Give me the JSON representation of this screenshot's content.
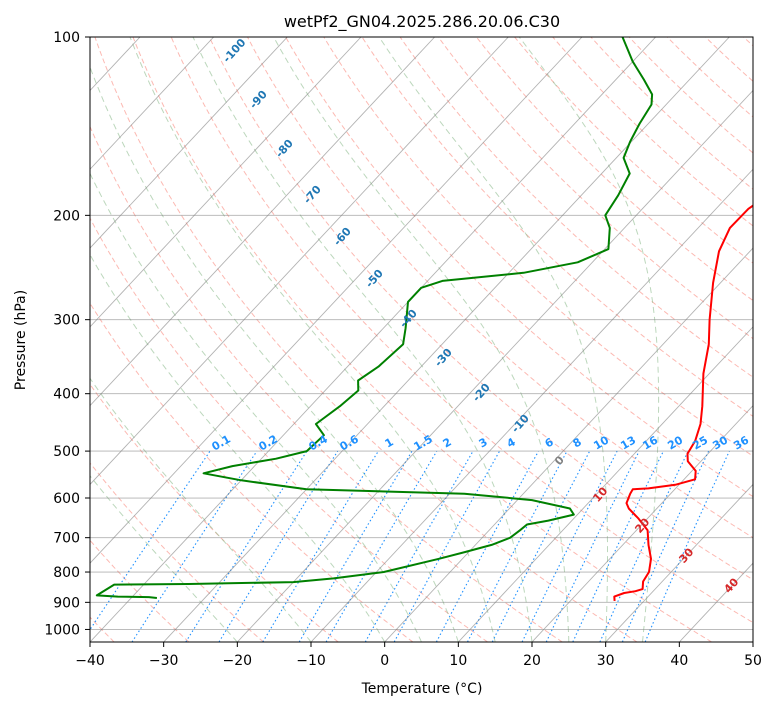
{
  "chart_data": {
    "type": "line",
    "title": "wetPf2_GN04.2025.286.20.06.C30",
    "xlabel": "Temperature (°C)",
    "ylabel": "Pressure (hPa)",
    "xlim": [
      -40,
      50
    ],
    "ylim": [
      1050,
      100
    ],
    "x_ticks": [
      -40,
      -30,
      -20,
      -10,
      0,
      10,
      20,
      30,
      40,
      50
    ],
    "y_ticks": [
      100,
      200,
      300,
      400,
      500,
      600,
      700,
      800,
      900,
      1000
    ],
    "series": [
      {
        "name": "Temperature",
        "color": "#ff0000",
        "points": [
          [
            26,
            895
          ],
          [
            25.4,
            880
          ],
          [
            26.3,
            868
          ],
          [
            27.6,
            862
          ],
          [
            28.3,
            855
          ],
          [
            27.4,
            830
          ],
          [
            27,
            800
          ],
          [
            25.6,
            760
          ],
          [
            23.5,
            720
          ],
          [
            21.5,
            680
          ],
          [
            18.8,
            650
          ],
          [
            16.2,
            625
          ],
          [
            15.2,
            612
          ],
          [
            14.5,
            590
          ],
          [
            14.3,
            580
          ],
          [
            16.3,
            578
          ],
          [
            19.5,
            570
          ],
          [
            21.5,
            558
          ],
          [
            20.5,
            540
          ],
          [
            18.2,
            520
          ],
          [
            17.2,
            505
          ],
          [
            16.6,
            480
          ],
          [
            15.2,
            450
          ],
          [
            13.2,
            420
          ],
          [
            9.2,
            370
          ],
          [
            6.2,
            330
          ],
          [
            3.2,
            300
          ],
          [
            -1.0,
            260
          ],
          [
            -4.2,
            230
          ],
          [
            -5.7,
            210
          ],
          [
            -5.6,
            195
          ],
          [
            -4.2,
            180
          ],
          [
            -3.2,
            172
          ],
          [
            -2.7,
            160
          ],
          [
            -2.3,
            150
          ],
          [
            -3.3,
            140
          ],
          [
            -5.3,
            130
          ],
          [
            -7.8,
            120
          ],
          [
            -10.3,
            110
          ],
          [
            -13.0,
            100
          ]
        ]
      },
      {
        "name": "Dewpoint",
        "color": "#008000",
        "points": [
          [
            -36.5,
            885
          ],
          [
            -37.7,
            882
          ],
          [
            -42.0,
            880
          ],
          [
            -45.0,
            876
          ],
          [
            -44.0,
            840
          ],
          [
            -34.0,
            838
          ],
          [
            -20.0,
            832
          ],
          [
            -15.0,
            820
          ],
          [
            -9.0,
            800
          ],
          [
            -3.2,
            760
          ],
          [
            -0.5,
            740
          ],
          [
            2.2,
            720
          ],
          [
            3.8,
            700
          ],
          [
            4.2,
            680
          ],
          [
            4.4,
            665
          ],
          [
            6.8,
            655
          ],
          [
            9.5,
            640
          ],
          [
            8.2,
            625
          ],
          [
            2.0,
            605
          ],
          [
            -8.0,
            590
          ],
          [
            -30.0,
            580
          ],
          [
            -40.0,
            560
          ],
          [
            -46.0,
            545
          ],
          [
            -43.0,
            530
          ],
          [
            -38.0,
            515
          ],
          [
            -34.8,
            500
          ],
          [
            -34.5,
            470
          ],
          [
            -37.0,
            450
          ],
          [
            -36.0,
            420
          ],
          [
            -35.5,
            395
          ],
          [
            -36.8,
            380
          ],
          [
            -35.8,
            360
          ],
          [
            -35.3,
            330
          ],
          [
            -37.0,
            310
          ],
          [
            -40.0,
            280
          ],
          [
            -40.0,
            265
          ],
          [
            -38.0,
            258
          ],
          [
            -28.0,
            250
          ],
          [
            -22.0,
            240
          ],
          [
            -19.5,
            228
          ],
          [
            -22.0,
            210
          ],
          [
            -24.2,
            200
          ],
          [
            -25.0,
            185
          ],
          [
            -26.2,
            170
          ],
          [
            -29.0,
            160
          ],
          [
            -30.2,
            150
          ],
          [
            -31.2,
            140
          ],
          [
            -32.0,
            130
          ],
          [
            -33.2,
            125
          ],
          [
            -36.2,
            118
          ],
          [
            -40.0,
            110
          ],
          [
            -44.5,
            100
          ]
        ]
      }
    ],
    "dry_adiabat_labels": [
      "-100",
      "-90",
      "-80",
      "-70",
      "-60",
      "-50",
      "-40",
      "-30",
      "-20",
      "-10",
      "0",
      "10",
      "20",
      "30",
      "40"
    ],
    "mixing_ratio_labels": [
      "0.1",
      "0.2",
      "0.4",
      "0.6",
      "1",
      "1.5",
      "2",
      "3",
      "4",
      "6",
      "8",
      "10",
      "13",
      "16",
      "20",
      "25",
      "30",
      "36"
    ],
    "colors": {
      "dry_adiabat": "#fa8072",
      "moist_adiabat": "#8fbc8f",
      "mixing_ratio": "#1e90ff",
      "isotherm": "#808080",
      "label_cold": "#1f77b4",
      "label_zero": "#808080",
      "label_warm": "#d62728",
      "mixing_label": "#1e90ff"
    }
  }
}
